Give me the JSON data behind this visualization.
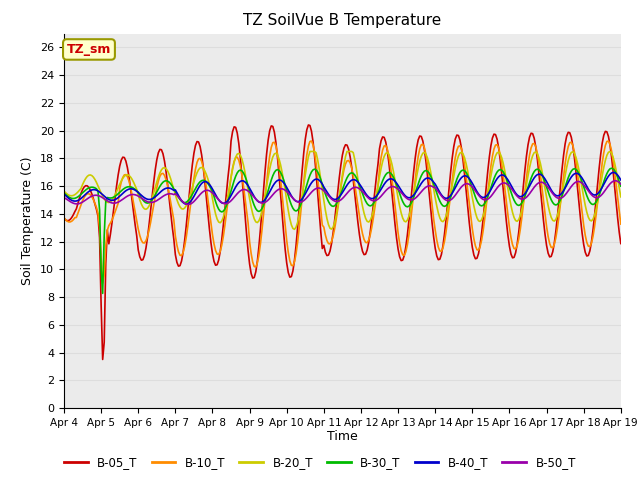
{
  "title": "TZ SoilVue B Temperature",
  "ylabel": "Soil Temperature (C)",
  "xlabel": "Time",
  "annotation": "TZ_sm",
  "annotation_color": "#CC0000",
  "annotation_bg": "#FFFFCC",
  "annotation_edge": "#999900",
  "ylim": [
    0,
    27
  ],
  "yticks": [
    0,
    2,
    4,
    6,
    8,
    10,
    12,
    14,
    16,
    18,
    20,
    22,
    24,
    26
  ],
  "xtick_labels": [
    "Apr 4",
    "Apr 5",
    "Apr 6",
    "Apr 7",
    "Apr 8",
    "Apr 9",
    "Apr 10",
    "Apr 11",
    "Apr 12",
    "Apr 13",
    "Apr 14",
    "Apr 15",
    "Apr 16",
    "Apr 17",
    "Apr 18",
    "Apr 19"
  ],
  "series_order": [
    "B-05_T",
    "B-10_T",
    "B-20_T",
    "B-30_T",
    "B-40_T",
    "B-50_T"
  ],
  "series": {
    "B-05_T": {
      "color": "#CC0000",
      "lw": 1.2
    },
    "B-10_T": {
      "color": "#FF8C00",
      "lw": 1.2
    },
    "B-20_T": {
      "color": "#CCCC00",
      "lw": 1.2
    },
    "B-30_T": {
      "color": "#00BB00",
      "lw": 1.2
    },
    "B-40_T": {
      "color": "#0000CC",
      "lw": 1.2
    },
    "B-50_T": {
      "color": "#9900AA",
      "lw": 1.2
    }
  },
  "grid_color": "#DDDDDD",
  "bg_color": "#EBEBEB",
  "title_fontsize": 11,
  "axis_fontsize": 9,
  "tick_fontsize": 8
}
